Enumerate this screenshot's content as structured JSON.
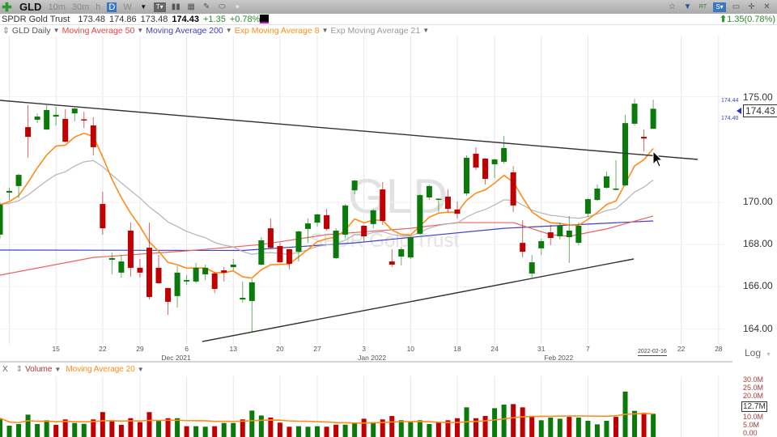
{
  "toolbar": {
    "symbol": "GLD",
    "timeframes": [
      "10m",
      "30m",
      "h",
      "D",
      "W"
    ],
    "active_timeframe": "D"
  },
  "quote": {
    "name": "SPDR Gold Trust",
    "open": "173.48",
    "high": "174.86",
    "low": "173.48",
    "last": "174.43",
    "change": "+1.35",
    "change_pct": "+0.78%",
    "right_change": "1.35(0.78%)"
  },
  "legend": {
    "chart": "GLD Daily",
    "ma50": "Moving Average 50",
    "ma200": "Moving Average 200",
    "ema8": "Exp Moving Average 8",
    "ema21": "Exp Moving Average 21"
  },
  "watermark": {
    "symbol": "GLD",
    "name": "SPDR Gold Trust"
  },
  "colors": {
    "up": "#0a7a0a",
    "down": "#c00000",
    "ma50": "#f06060",
    "ma200": "#4040c0",
    "ema8": "#ff8c1a",
    "ema21": "#b4b4b4",
    "vol_ma": "#ff8c1a",
    "trendline": "#333333"
  },
  "price_axis": {
    "ticks": [
      "175.00",
      "170.00",
      "168.00",
      "166.00",
      "164.00"
    ],
    "last_box": "174.43",
    "bid": "174.44",
    "ask": "174.40",
    "scale": "Log"
  },
  "x_axis": {
    "ticks": [
      {
        "label": "15",
        "date": "2021-11-15"
      },
      {
        "label": "22",
        "date": "2021-11-22"
      },
      {
        "label": "29",
        "date": "2021-11-29"
      },
      {
        "label": "6",
        "date": "2021-12-06"
      },
      {
        "label": "13",
        "date": "2021-12-13"
      },
      {
        "label": "20",
        "date": "2021-12-20"
      },
      {
        "label": "27",
        "date": "2021-12-27"
      },
      {
        "label": "3",
        "date": "2022-01-03"
      },
      {
        "label": "10",
        "date": "2022-01-10"
      },
      {
        "label": "18",
        "date": "2022-01-18"
      },
      {
        "label": "24",
        "date": "2022-01-24"
      },
      {
        "label": "31",
        "date": "2022-01-31"
      },
      {
        "label": "7",
        "date": "2022-02-07"
      },
      {
        "label": "22",
        "date": "2022-02-22"
      },
      {
        "label": "28",
        "date": "2022-02-28"
      }
    ],
    "months": [
      {
        "label": "Dec 2021",
        "date": "2021-12-02"
      },
      {
        "label": "Jan 2022",
        "date": "2022-01-03"
      },
      {
        "label": "Feb 2022",
        "date": "2022-02-01"
      }
    ],
    "cursor_date": "2022-02-16"
  },
  "volume_panel": {
    "close": "X",
    "volume": "Volume",
    "ma": "Moving Average 20",
    "ticks": [
      "30.0M",
      "25.0M",
      "20.0M",
      "10.0M",
      "5.0M",
      "0.00"
    ],
    "last_box": "12.7M"
  },
  "chart_data": {
    "type": "candlestick",
    "ylim": [
      163.5,
      176
    ],
    "candles": [
      {
        "d": "2021-11-05",
        "o": 168.47,
        "h": 170.0,
        "l": 168.28,
        "c": 169.89,
        "v": 10.1,
        "vu": 1
      },
      {
        "d": "2021-11-08",
        "o": 170.46,
        "h": 170.69,
        "l": 170.11,
        "c": 170.54,
        "v": 5.7,
        "vu": 1
      },
      {
        "d": "2021-11-09",
        "o": 170.77,
        "h": 171.35,
        "l": 170.19,
        "c": 171.3,
        "v": 6.7,
        "vu": 1
      },
      {
        "d": "2021-11-10",
        "o": 173.56,
        "h": 174.6,
        "l": 172.11,
        "c": 173.1,
        "v": 12.2,
        "vu": 1
      },
      {
        "d": "2021-11-11",
        "o": 173.91,
        "h": 174.21,
        "l": 173.75,
        "c": 174.06,
        "v": 6.7,
        "vu": 1
      },
      {
        "d": "2021-11-12",
        "o": 173.45,
        "h": 174.6,
        "l": 173.42,
        "c": 174.37,
        "v": 8.9,
        "vu": 1
      },
      {
        "d": "2021-11-15",
        "o": 174.06,
        "h": 174.52,
        "l": 173.64,
        "c": 174.14,
        "v": 6.2,
        "vu": 0
      },
      {
        "d": "2021-11-16",
        "o": 173.95,
        "h": 174.41,
        "l": 172.85,
        "c": 172.87,
        "v": 9.4,
        "vu": 0
      },
      {
        "d": "2021-11-17",
        "o": 174.21,
        "h": 174.48,
        "l": 173.83,
        "c": 174.44,
        "v": 7.3,
        "vu": 1
      },
      {
        "d": "2021-11-18",
        "o": 173.93,
        "h": 174.29,
        "l": 173.52,
        "c": 173.89,
        "v": 6.8,
        "vu": 1
      },
      {
        "d": "2021-11-19",
        "o": 173.64,
        "h": 174.02,
        "l": 172.22,
        "c": 172.61,
        "v": 9.4,
        "vu": 0
      },
      {
        "d": "2021-11-22",
        "o": 169.92,
        "h": 170.5,
        "l": 168.47,
        "c": 168.77,
        "v": 13.7,
        "vu": 0
      },
      {
        "d": "2021-11-23",
        "o": 167.28,
        "h": 167.62,
        "l": 166.59,
        "c": 167.36,
        "v": 8.9,
        "vu": 0
      },
      {
        "d": "2021-11-24",
        "o": 166.67,
        "h": 167.51,
        "l": 166.44,
        "c": 167.2,
        "v": 6.2,
        "vu": 0
      },
      {
        "d": "2021-11-26",
        "o": 168.66,
        "h": 169.04,
        "l": 166.48,
        "c": 166.9,
        "v": 10.1,
        "vu": 0
      },
      {
        "d": "2021-11-29",
        "o": 166.9,
        "h": 167.32,
        "l": 166.44,
        "c": 166.67,
        "v": 7.8,
        "vu": 0
      },
      {
        "d": "2021-11-30",
        "o": 167.85,
        "h": 169.04,
        "l": 165.4,
        "c": 165.52,
        "v": 13.7,
        "vu": 0
      },
      {
        "d": "2021-12-01",
        "o": 166.9,
        "h": 167.51,
        "l": 166.15,
        "c": 166.17,
        "v": 8.6,
        "vu": 1
      },
      {
        "d": "2021-12-02",
        "o": 165.94,
        "h": 165.96,
        "l": 164.67,
        "c": 165.29,
        "v": 10.1,
        "vu": 0
      },
      {
        "d": "2021-12-03",
        "o": 165.56,
        "h": 166.97,
        "l": 165.02,
        "c": 166.67,
        "v": 10.1,
        "vu": 1
      },
      {
        "d": "2021-12-06",
        "o": 166.25,
        "h": 166.55,
        "l": 166.09,
        "c": 166.32,
        "v": 5.4,
        "vu": 0
      },
      {
        "d": "2021-12-07",
        "o": 166.25,
        "h": 167.13,
        "l": 166.17,
        "c": 166.9,
        "v": 5.4,
        "vu": 1
      },
      {
        "d": "2021-12-08",
        "o": 166.59,
        "h": 167.05,
        "l": 166.32,
        "c": 166.9,
        "v": 5.1,
        "vu": 1
      },
      {
        "d": "2021-12-09",
        "o": 166.63,
        "h": 166.7,
        "l": 165.71,
        "c": 165.9,
        "v": 5.4,
        "vu": 0
      },
      {
        "d": "2021-12-10",
        "o": 166.78,
        "h": 166.93,
        "l": 166.25,
        "c": 166.67,
        "v": 7.3,
        "vu": 1
      },
      {
        "d": "2021-12-13",
        "o": 166.93,
        "h": 167.32,
        "l": 166.78,
        "c": 167.05,
        "v": 7.3,
        "vu": 1
      },
      {
        "d": "2021-12-14",
        "o": 165.4,
        "h": 166.25,
        "l": 165.25,
        "c": 165.48,
        "v": 9.4,
        "vu": 0
      },
      {
        "d": "2021-12-15",
        "o": 165.33,
        "h": 166.36,
        "l": 163.87,
        "c": 166.21,
        "v": 14.6,
        "vu": 1
      },
      {
        "d": "2021-12-16",
        "o": 167.05,
        "h": 168.35,
        "l": 167.01,
        "c": 168.2,
        "v": 11.7,
        "vu": 1
      },
      {
        "d": "2021-12-17",
        "o": 168.77,
        "h": 169.23,
        "l": 167.83,
        "c": 167.85,
        "v": 10.5,
        "vu": 0
      },
      {
        "d": "2021-12-20",
        "o": 167.93,
        "h": 168.08,
        "l": 167.14,
        "c": 167.16,
        "v": 7.5,
        "vu": 0
      },
      {
        "d": "2021-12-21",
        "o": 167.78,
        "h": 167.8,
        "l": 166.82,
        "c": 167.09,
        "v": 5.1,
        "vu": 0
      },
      {
        "d": "2021-12-22",
        "o": 167.66,
        "h": 168.66,
        "l": 167.2,
        "c": 168.62,
        "v": 5.4,
        "vu": 1
      },
      {
        "d": "2021-12-23",
        "o": 168.74,
        "h": 169.23,
        "l": 168.08,
        "c": 169.0,
        "v": 5.1,
        "vu": 1
      },
      {
        "d": "2021-12-27",
        "o": 169.04,
        "h": 169.45,
        "l": 168.85,
        "c": 169.43,
        "v": 5.4,
        "vu": 1
      },
      {
        "d": "2021-12-28",
        "o": 169.39,
        "h": 169.69,
        "l": 168.66,
        "c": 168.74,
        "v": 5.1,
        "vu": 0
      },
      {
        "d": "2021-12-29",
        "o": 167.36,
        "h": 168.77,
        "l": 167.32,
        "c": 168.66,
        "v": 6.3,
        "vu": 0
      },
      {
        "d": "2021-12-30",
        "o": 168.47,
        "h": 169.92,
        "l": 168.28,
        "c": 169.85,
        "v": 6.3,
        "vu": 1
      },
      {
        "d": "2021-12-31",
        "o": 170.57,
        "h": 171.07,
        "l": 170.38,
        "c": 171.03,
        "v": 7.6,
        "vu": 1
      },
      {
        "d": "2022-01-03",
        "o": 168.89,
        "h": 168.92,
        "l": 168.16,
        "c": 168.39,
        "v": 9.8,
        "vu": 0
      },
      {
        "d": "2022-01-04",
        "o": 168.97,
        "h": 169.69,
        "l": 168.77,
        "c": 169.62,
        "v": 7.8,
        "vu": 1
      },
      {
        "d": "2022-01-05",
        "o": 170.61,
        "h": 170.96,
        "l": 168.93,
        "c": 169.12,
        "v": 9.4,
        "vu": 0
      },
      {
        "d": "2022-01-06",
        "o": 167.2,
        "h": 167.78,
        "l": 166.93,
        "c": 167.05,
        "v": 11.4,
        "vu": 0
      },
      {
        "d": "2022-01-07",
        "o": 167.43,
        "h": 167.89,
        "l": 167.01,
        "c": 167.78,
        "v": 8.9,
        "vu": 1
      },
      {
        "d": "2022-01-10",
        "o": 167.39,
        "h": 168.36,
        "l": 167.32,
        "c": 168.35,
        "v": 7.8,
        "vu": 1
      },
      {
        "d": "2022-01-11",
        "o": 168.51,
        "h": 170.38,
        "l": 168.47,
        "c": 170.34,
        "v": 8.9,
        "vu": 1
      },
      {
        "d": "2022-01-12",
        "o": 170.23,
        "h": 170.84,
        "l": 170.11,
        "c": 170.77,
        "v": 6.7,
        "vu": 1
      },
      {
        "d": "2022-01-13",
        "o": 170.12,
        "h": 170.19,
        "l": 169.54,
        "c": 170.17,
        "v": 7.8,
        "vu": 0
      },
      {
        "d": "2022-01-14",
        "o": 170.27,
        "h": 170.61,
        "l": 169.54,
        "c": 169.69,
        "v": 8.9,
        "vu": 0
      },
      {
        "d": "2022-01-18",
        "o": 169.66,
        "h": 170.04,
        "l": 169.23,
        "c": 169.46,
        "v": 10.1,
        "vu": 0
      },
      {
        "d": "2022-01-19",
        "o": 170.42,
        "h": 172.22,
        "l": 170.31,
        "c": 172.11,
        "v": 16.5,
        "vu": 1
      },
      {
        "d": "2022-01-20",
        "o": 172.3,
        "h": 172.61,
        "l": 171.53,
        "c": 171.65,
        "v": 10.1,
        "vu": 0
      },
      {
        "d": "2022-01-21",
        "o": 172.07,
        "h": 172.1,
        "l": 170.84,
        "c": 171.11,
        "v": 11.4,
        "vu": 0
      },
      {
        "d": "2022-01-24",
        "o": 171.8,
        "h": 172.07,
        "l": 171.15,
        "c": 172.03,
        "v": 16.0,
        "vu": 1
      },
      {
        "d": "2022-01-25",
        "o": 171.92,
        "h": 173.14,
        "l": 171.84,
        "c": 172.57,
        "v": 18.1,
        "vu": 1
      },
      {
        "d": "2022-01-26",
        "o": 171.42,
        "h": 171.72,
        "l": 169.54,
        "c": 169.85,
        "v": 18.4,
        "vu": 0
      },
      {
        "d": "2022-01-27",
        "o": 168.08,
        "h": 169.16,
        "l": 167.39,
        "c": 167.66,
        "v": 16.5,
        "vu": 0
      },
      {
        "d": "2022-01-28",
        "o": 166.63,
        "h": 167.51,
        "l": 166.44,
        "c": 167.16,
        "v": 10.9,
        "vu": 0
      },
      {
        "d": "2022-01-31",
        "o": 167.82,
        "h": 168.28,
        "l": 167.51,
        "c": 168.16,
        "v": 8.9,
        "vu": 1
      },
      {
        "d": "2022-02-01",
        "o": 168.58,
        "h": 168.93,
        "l": 167.97,
        "c": 168.31,
        "v": 10.5,
        "vu": 1
      },
      {
        "d": "2022-02-02",
        "o": 168.39,
        "h": 169.04,
        "l": 168.24,
        "c": 168.89,
        "v": 9.8,
        "vu": 1
      },
      {
        "d": "2022-02-03",
        "o": 168.35,
        "h": 169.35,
        "l": 167.13,
        "c": 168.66,
        "v": 10.9,
        "vu": 0
      },
      {
        "d": "2022-02-04",
        "o": 168.08,
        "h": 169.04,
        "l": 167.97,
        "c": 168.89,
        "v": 10.5,
        "vu": 1
      },
      {
        "d": "2022-02-07",
        "o": 169.46,
        "h": 170.19,
        "l": 169.31,
        "c": 170.15,
        "v": 8.6,
        "vu": 1
      },
      {
        "d": "2022-02-08",
        "o": 170.11,
        "h": 170.84,
        "l": 170.08,
        "c": 170.65,
        "v": 6.5,
        "vu": 1
      },
      {
        "d": "2022-02-09",
        "o": 170.69,
        "h": 171.46,
        "l": 170.65,
        "c": 171.23,
        "v": 8.6,
        "vu": 1
      },
      {
        "d": "2022-02-10",
        "o": 170.59,
        "h": 171.99,
        "l": 170.57,
        "c": 170.65,
        "v": 10.9,
        "vu": 0
      },
      {
        "d": "2022-02-11",
        "o": 170.8,
        "h": 174.14,
        "l": 170.77,
        "c": 173.75,
        "v": 25.8,
        "vu": 1
      },
      {
        "d": "2022-02-14",
        "o": 173.72,
        "h": 174.9,
        "l": 173.64,
        "c": 174.67,
        "v": 14.4,
        "vu": 1
      },
      {
        "d": "2022-02-15",
        "o": 173.1,
        "h": 173.45,
        "l": 172.41,
        "c": 173.02,
        "v": 13.3,
        "vu": 0
      },
      {
        "d": "2022-02-16",
        "o": 173.48,
        "h": 174.86,
        "l": 173.48,
        "c": 174.43,
        "v": 12.7,
        "vu": 1
      }
    ],
    "ma50": [
      [
        "2021-11-05",
        166.55
      ],
      [
        "2021-11-19",
        167.39
      ],
      [
        "2021-12-06",
        167.7
      ],
      [
        "2021-12-16",
        168.0
      ],
      [
        "2021-12-28",
        168.47
      ],
      [
        "2022-01-10",
        168.77
      ],
      [
        "2022-01-18",
        169.04
      ],
      [
        "2022-01-26",
        169.04
      ],
      [
        "2022-02-01",
        168.47
      ],
      [
        "2022-02-03",
        168.39
      ],
      [
        "2022-02-09",
        168.74
      ],
      [
        "2022-02-16",
        169.35
      ]
    ],
    "ma200": [
      [
        "2021-11-05",
        167.74
      ],
      [
        "2021-12-14",
        167.72
      ],
      [
        "2021-12-31",
        168.08
      ],
      [
        "2022-01-25",
        168.77
      ],
      [
        "2022-02-16",
        169.12
      ]
    ]
  }
}
